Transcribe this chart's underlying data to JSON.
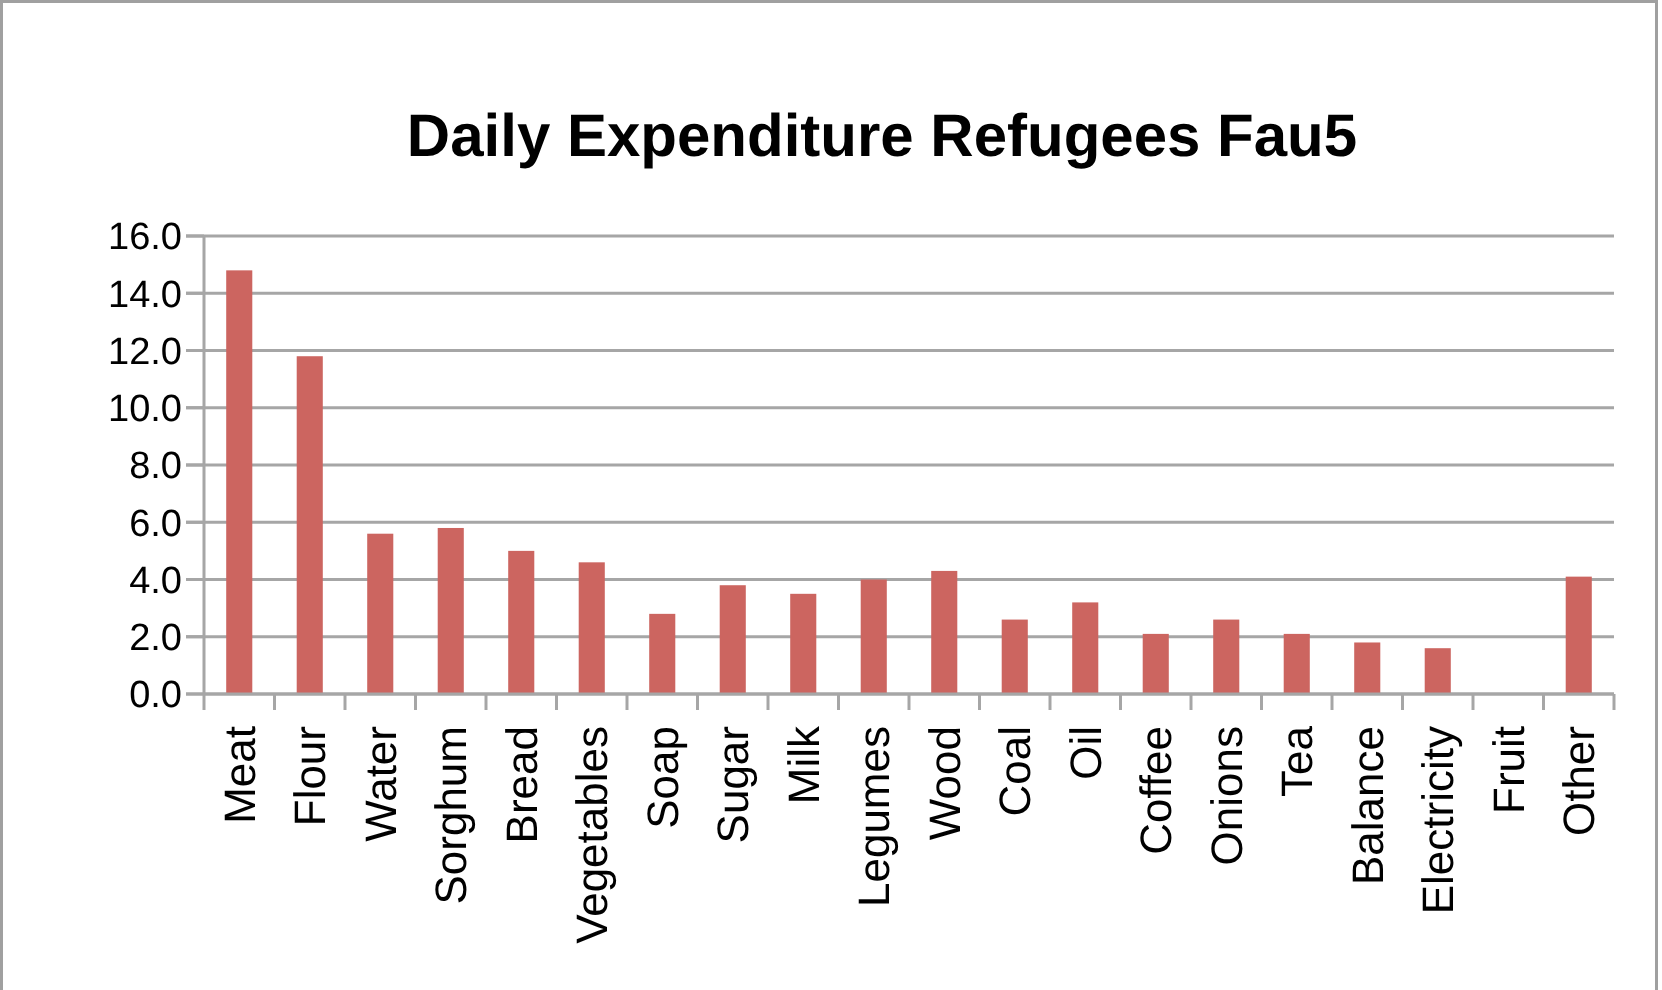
{
  "chart_data": {
    "type": "bar",
    "title": "Daily Expenditure Refugees Fau5",
    "categories": [
      "Meat",
      "Flour",
      "Water",
      "Sorghum",
      "Bread",
      "Vegetables",
      "Soap",
      "Sugar",
      "Milk",
      "Legumes",
      "Wood",
      "Coal",
      "Oil",
      "Coffee",
      "Onions",
      "Tea",
      "Balance",
      "Electricity",
      "Fruit",
      "Other"
    ],
    "values": [
      14.8,
      11.8,
      5.6,
      5.8,
      5.0,
      4.6,
      2.8,
      3.8,
      3.5,
      4.0,
      4.3,
      2.6,
      3.2,
      2.1,
      2.6,
      2.1,
      1.8,
      1.6,
      0,
      4.1
    ],
    "color": "#cc6560",
    "ylim": [
      0,
      16
    ],
    "yticks": [
      {
        "value": 0,
        "label": "0.0"
      },
      {
        "value": 2,
        "label": "2.0"
      },
      {
        "value": 4,
        "label": "4.0"
      },
      {
        "value": 6,
        "label": "6.0"
      },
      {
        "value": 8,
        "label": "8.0"
      },
      {
        "value": 10,
        "label": "10.0"
      },
      {
        "value": 12,
        "label": "12.0"
      },
      {
        "value": 14,
        "label": "14.0"
      },
      {
        "value": 16,
        "label": "16.0"
      }
    ],
    "grid": "y"
  }
}
